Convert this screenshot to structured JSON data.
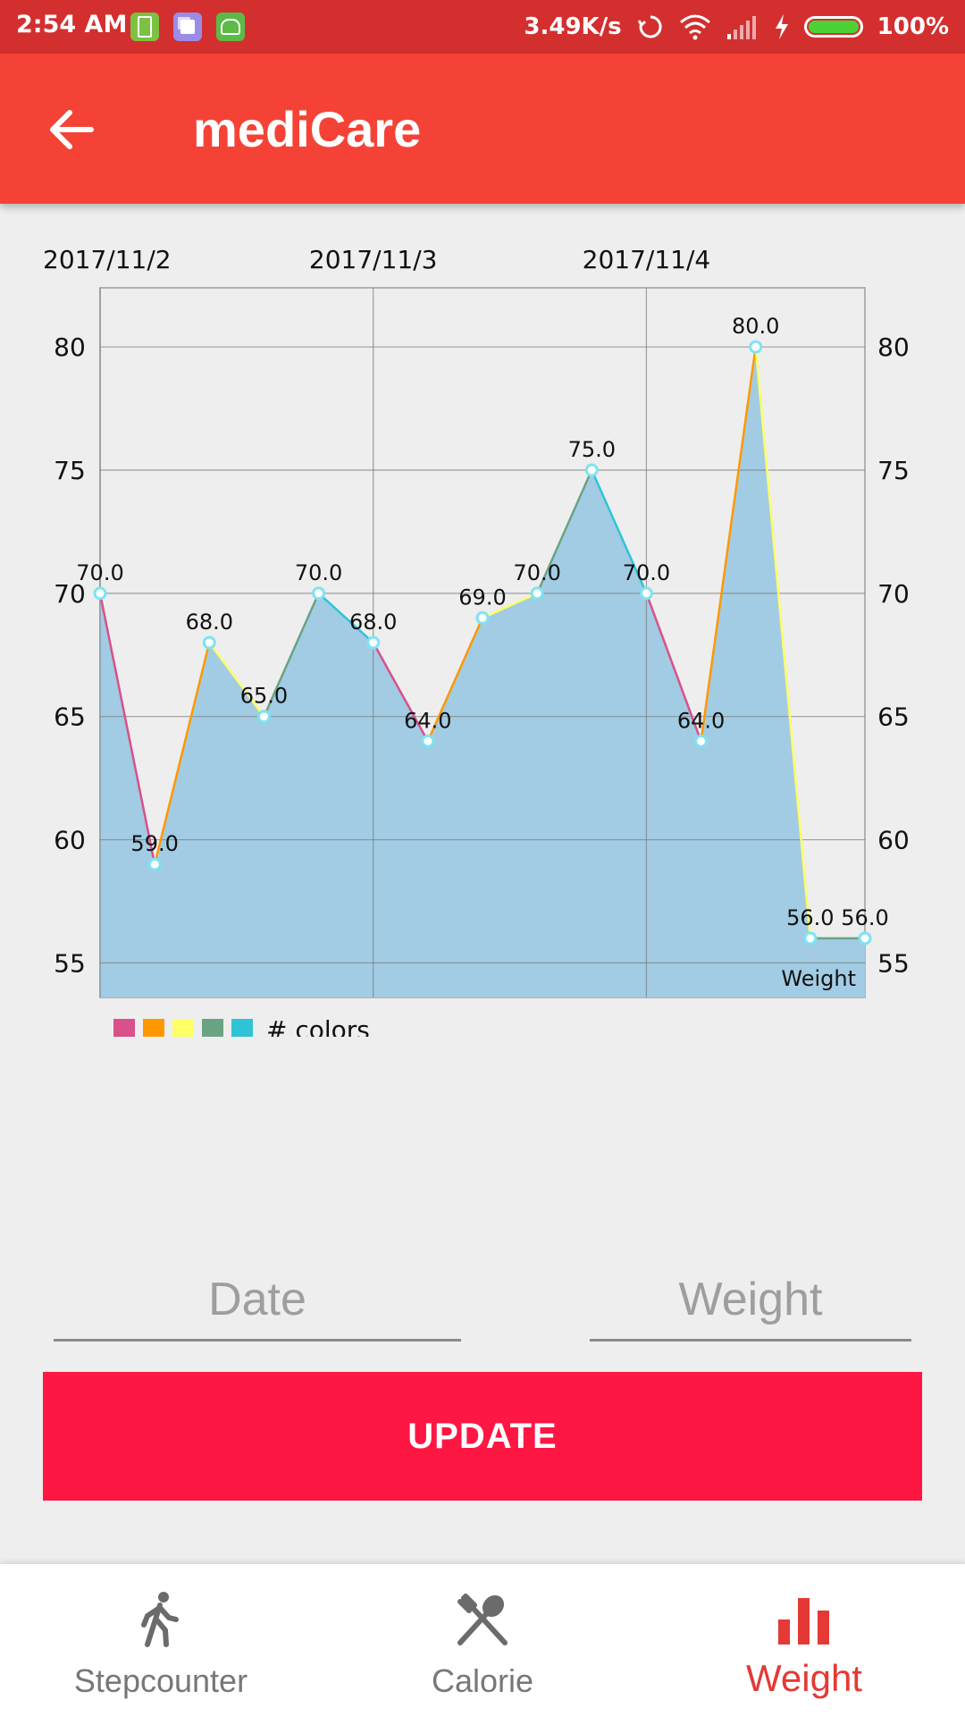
{
  "status_bar": {
    "time": "2:54 AM",
    "net_speed": "3.49K/s",
    "battery": "100%",
    "icons": [
      "battery-app-icon",
      "copy-app-icon",
      "android-app-icon",
      "sync-icon",
      "wifi-icon",
      "signal-icon",
      "charging-icon",
      "battery-icon"
    ]
  },
  "app_bar": {
    "title": "mediCare",
    "back_icon": "arrow-left-icon"
  },
  "chart_data": {
    "type": "area",
    "top_x_labels": [
      "2017/11/2",
      "2017/11/3",
      "2017/11/4"
    ],
    "y_ticks": [
      55,
      60,
      65,
      70,
      75,
      80
    ],
    "ylim": [
      53.6,
      82.4
    ],
    "series": [
      {
        "name": "Weight",
        "values": [
          70.0,
          59.0,
          68.0,
          65.0,
          70.0,
          68.0,
          64.0,
          69.0,
          70.0,
          75.0,
          70.0,
          64.0,
          80.0,
          56.0,
          56.0
        ],
        "value_labels": [
          "70.0",
          "59.0",
          "68.0",
          "65.0",
          "70.0",
          "68.0",
          "64.0",
          "69.0",
          "70.0",
          "75.0",
          "70.0",
          "64.0",
          "80.0",
          "56.0",
          "56.0"
        ]
      }
    ],
    "segment_colors": [
      "#d9508a",
      "#ff9800",
      "#ffff66",
      "#6aa383",
      "#2ec4d6"
    ],
    "fill_color": "#a2cce4",
    "grid": true,
    "legend": {
      "label": "# colors",
      "colors": [
        "#d9508a",
        "#ff9800",
        "#ffff66",
        "#6aa383",
        "#2ec4d6"
      ],
      "placement": "bottom-left"
    },
    "series_label": "Weight"
  },
  "form": {
    "date_placeholder": "Date",
    "weight_placeholder": "Weight",
    "update_label": "UPDATE"
  },
  "bottom_nav": {
    "items": [
      {
        "label": "Stepcounter",
        "icon": "walking-person-icon",
        "active": false
      },
      {
        "label": "Calorie",
        "icon": "fork-spoon-icon",
        "active": false
      },
      {
        "label": "Weight",
        "icon": "bar-chart-icon",
        "active": true
      }
    ]
  }
}
